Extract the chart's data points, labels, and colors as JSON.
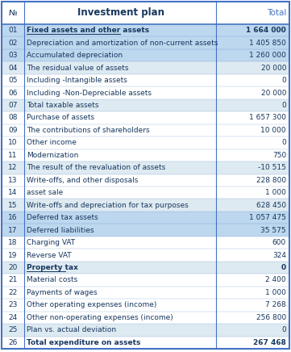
{
  "title": "Investment plan",
  "col_header_num": "№",
  "col_header_total": "Total",
  "rows": [
    {
      "num": "01",
      "label": "Fixed assets and other assets",
      "value": "1 664 000",
      "bold": true,
      "underline": true,
      "bg": "#BDD7EE"
    },
    {
      "num": "02",
      "label": "Depreciation and amortization of non-current assets",
      "value": "1 405 850",
      "bold": false,
      "underline": false,
      "bg": "#BDD7EE"
    },
    {
      "num": "03",
      "label": "Accumulated depreciation",
      "value": "1 260 000",
      "bold": false,
      "underline": false,
      "bg": "#BDD7EE"
    },
    {
      "num": "04",
      "label": "The residual value of assets",
      "value": "20 000",
      "bold": false,
      "underline": false,
      "bg": "#DEEAF1"
    },
    {
      "num": "05",
      "label": "Including -Intangible assets",
      "value": "0",
      "bold": false,
      "underline": false,
      "bg": "#FFFFFF"
    },
    {
      "num": "06",
      "label": "Including -Non-Depreciable assets",
      "value": "20 000",
      "bold": false,
      "underline": false,
      "bg": "#FFFFFF"
    },
    {
      "num": "07",
      "label": "Total taxable assets",
      "value": "0",
      "bold": false,
      "underline": false,
      "bg": "#DEEAF1"
    },
    {
      "num": "08",
      "label": "Purchase of assets",
      "value": "1 657 300",
      "bold": false,
      "underline": false,
      "bg": "#FFFFFF"
    },
    {
      "num": "09",
      "label": "The contributions of shareholders",
      "value": "10 000",
      "bold": false,
      "underline": false,
      "bg": "#FFFFFF"
    },
    {
      "num": "10",
      "label": "Other income",
      "value": "0",
      "bold": false,
      "underline": false,
      "bg": "#FFFFFF"
    },
    {
      "num": "11",
      "label": "Modernization",
      "value": "750",
      "bold": false,
      "underline": false,
      "bg": "#FFFFFF"
    },
    {
      "num": "12",
      "label": "The result of the revaluation of assets",
      "value": "-10 515",
      "bold": false,
      "underline": false,
      "bg": "#DEEAF1"
    },
    {
      "num": "13",
      "label": "Write-offs, and other disposals",
      "value": "228 800",
      "bold": false,
      "underline": false,
      "bg": "#FFFFFF"
    },
    {
      "num": "14",
      "label": "asset sale",
      "value": "1 000",
      "bold": false,
      "underline": false,
      "bg": "#FFFFFF"
    },
    {
      "num": "15",
      "label": "Write-offs and depreciation for tax purposes",
      "value": "628 450",
      "bold": false,
      "underline": false,
      "bg": "#DEEAF1"
    },
    {
      "num": "16",
      "label": "Deferred tax assets",
      "value": "1 057 475",
      "bold": false,
      "underline": false,
      "bg": "#BDD7EE"
    },
    {
      "num": "17",
      "label": "Deferred liabilities",
      "value": "35 575",
      "bold": false,
      "underline": false,
      "bg": "#BDD7EE"
    },
    {
      "num": "18",
      "label": "Charging VAT",
      "value": "600",
      "bold": false,
      "underline": false,
      "bg": "#FFFFFF"
    },
    {
      "num": "19",
      "label": "Reverse VAT",
      "value": "324",
      "bold": false,
      "underline": false,
      "bg": "#FFFFFF"
    },
    {
      "num": "20",
      "label": "Property tax",
      "value": "0",
      "bold": true,
      "underline": true,
      "bg": "#DEEAF1"
    },
    {
      "num": "21",
      "label": "Material costs",
      "value": "2 400",
      "bold": false,
      "underline": false,
      "bg": "#FFFFFF"
    },
    {
      "num": "22",
      "label": "Payments of wages",
      "value": "1 000",
      "bold": false,
      "underline": false,
      "bg": "#FFFFFF"
    },
    {
      "num": "23",
      "label": "Other operating expenses (income)",
      "value": "7 268",
      "bold": false,
      "underline": false,
      "bg": "#FFFFFF"
    },
    {
      "num": "24",
      "label": "Other non-operating expenses (income)",
      "value": "256 800",
      "bold": false,
      "underline": false,
      "bg": "#FFFFFF"
    },
    {
      "num": "25",
      "label": "Plan vs. actual deviation",
      "value": "0",
      "bold": false,
      "underline": false,
      "bg": "#DEEAF1"
    },
    {
      "num": "26",
      "label": "Total expenditure on assets",
      "value": "267 468",
      "bold": true,
      "underline": false,
      "bg": "#FFFFFF"
    }
  ],
  "text_color": "#17375E",
  "title_color": "#17375E",
  "total_header_color": "#4472C4",
  "border_color": "#4472C4",
  "figsize": [
    3.61,
    4.36
  ],
  "dpi": 100
}
